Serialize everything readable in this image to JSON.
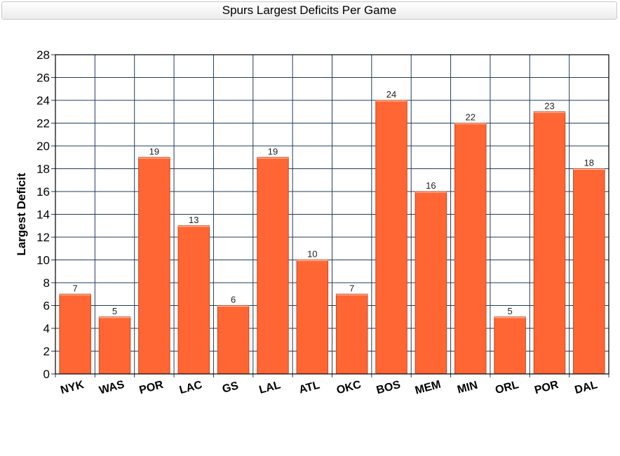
{
  "chart_data": {
    "type": "bar",
    "title": "Spurs Largest Deficits Per Game",
    "xlabel": "",
    "ylabel": "Largest Deficit",
    "categories": [
      "NYK",
      "WAS",
      "POR",
      "LAC",
      "GS",
      "LAL",
      "ATL",
      "OKC",
      "BOS",
      "MEM",
      "MIN",
      "ORL",
      "POR",
      "DAL"
    ],
    "values": [
      7,
      5,
      19,
      13,
      6,
      19,
      10,
      7,
      24,
      16,
      22,
      5,
      23,
      18
    ],
    "ylim": [
      0,
      28
    ],
    "yticks": [
      0,
      2,
      4,
      6,
      8,
      10,
      12,
      14,
      16,
      18,
      20,
      22,
      24,
      26,
      28
    ],
    "grid": true,
    "data_labels": true,
    "colors": {
      "bar": "#ff6633",
      "bar_edge": "#c8471c",
      "grid": "#1f3d5c",
      "frame": "#000000"
    }
  }
}
